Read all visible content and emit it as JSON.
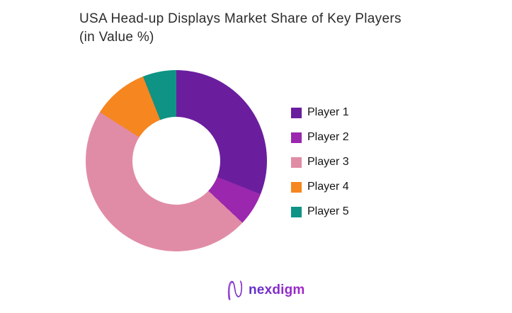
{
  "page": {
    "background": "#ffffff"
  },
  "header": {
    "title_lines": [
      "USA Head-up Displays Market Share of Key Players",
      "(in Value %)"
    ]
  },
  "chart_data": {
    "type": "pie",
    "subtype": "donut",
    "title": "USA Head-up Displays Market Share of Key Players (in Value %)",
    "categories": [
      "Player 1",
      "Player 2",
      "Player 3",
      "Player 4",
      "Player 5"
    ],
    "values": [
      31,
      6,
      47,
      10,
      6
    ],
    "unit": "percent-of-value-share",
    "colors": [
      "#6A1E9E",
      "#9B27AF",
      "#E18CA6",
      "#F6861F",
      "#0E9384"
    ],
    "start_angle_deg": 0,
    "direction": "clockwise",
    "inner_radius_ratio": 0.48,
    "legend_position": "right",
    "data_labels": "none"
  },
  "legend": {
    "items": [
      {
        "label": "Player 1",
        "color": "#6A1E9E"
      },
      {
        "label": "Player 2",
        "color": "#9B27AF"
      },
      {
        "label": "Player 3",
        "color": "#E18CA6"
      },
      {
        "label": "Player 4",
        "color": "#F6861F"
      },
      {
        "label": "Player 5",
        "color": "#0E9384"
      }
    ]
  },
  "footer": {
    "logo_text": "nexdigm",
    "logo_gradient": {
      "start": "#5A2FC9",
      "end": "#A426C9"
    }
  }
}
